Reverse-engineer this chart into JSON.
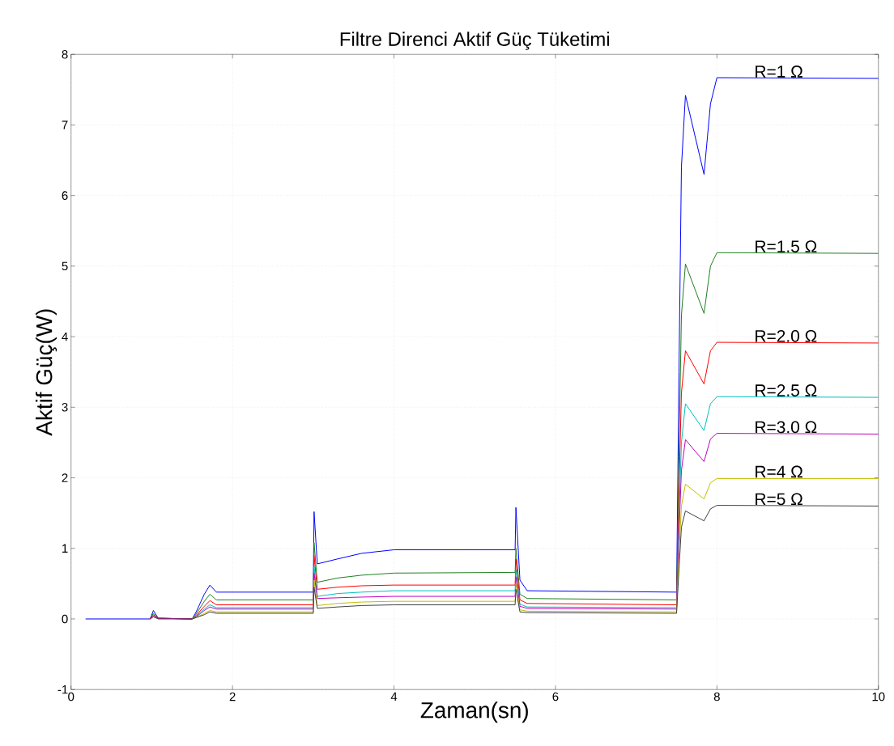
{
  "chart_data": {
    "type": "line",
    "title": "Filtre Direnci Aktif Güç Tüketimi",
    "xlabel": "Zaman(sn)",
    "ylabel": "Aktif Güç(W)",
    "x": [
      0.18,
      0.98,
      1.02,
      1.08,
      1.5,
      1.55,
      1.65,
      1.72,
      1.8,
      3.0,
      3.01,
      3.05,
      3.3,
      3.6,
      4.0,
      5.5,
      5.51,
      5.56,
      5.65,
      7.5,
      7.53,
      7.56,
      7.61,
      7.84,
      7.92,
      8.0,
      10
    ],
    "series": [
      {
        "name": "R=1 Ω",
        "color": "#0000ff",
        "values": [
          0,
          0,
          0.12,
          0.01,
          0,
          0.1,
          0.35,
          0.48,
          0.38,
          0.38,
          1.52,
          0.78,
          0.85,
          0.93,
          0.98,
          0.98,
          1.58,
          0.55,
          0.4,
          0.38,
          3.5,
          6.4,
          7.42,
          6.3,
          7.3,
          7.67,
          7.66
        ]
      },
      {
        "name": "R=1.5 Ω",
        "color": "#1f7f1f",
        "values": [
          null,
          0,
          0.08,
          0.01,
          0,
          0.07,
          0.25,
          0.35,
          0.27,
          0.27,
          1.08,
          0.52,
          0.58,
          0.62,
          0.65,
          0.66,
          1.0,
          0.35,
          0.29,
          0.27,
          2.3,
          4.3,
          5.03,
          4.33,
          5.0,
          5.19,
          5.18
        ]
      },
      {
        "name": "R=2.0 Ω",
        "color": "#ff0000",
        "values": [
          null,
          0,
          0.06,
          0.01,
          0,
          0.05,
          0.18,
          0.26,
          0.2,
          0.2,
          0.9,
          0.42,
          0.45,
          0.47,
          0.48,
          0.48,
          0.85,
          0.27,
          0.22,
          0.2,
          1.8,
          3.2,
          3.8,
          3.33,
          3.8,
          3.92,
          3.91
        ]
      },
      {
        "name": "R=2.5 Ω",
        "color": "#00bfbf",
        "values": [
          null,
          null,
          null,
          null,
          0,
          0.04,
          0.14,
          0.2,
          0.16,
          0.16,
          0.75,
          0.32,
          0.36,
          0.38,
          0.4,
          0.4,
          0.7,
          0.21,
          0.17,
          0.16,
          1.4,
          2.5,
          3.05,
          2.67,
          3.05,
          3.15,
          3.14
        ]
      },
      {
        "name": "R=3.0 Ω",
        "color": "#bf00bf",
        "values": [
          null,
          0,
          0.04,
          0.01,
          0,
          0.03,
          0.12,
          0.17,
          0.14,
          0.14,
          0.65,
          0.29,
          0.3,
          0.31,
          0.32,
          0.32,
          0.6,
          0.18,
          0.15,
          0.14,
          1.2,
          2.1,
          2.54,
          2.23,
          2.55,
          2.63,
          2.62
        ]
      },
      {
        "name": "R=4 Ω",
        "color": "#bfbf00",
        "values": [
          null,
          null,
          null,
          null,
          0,
          0.02,
          0.08,
          0.12,
          0.1,
          0.1,
          0.55,
          0.19,
          0.22,
          0.24,
          0.25,
          0.25,
          0.5,
          0.13,
          0.11,
          0.1,
          0.9,
          1.6,
          1.91,
          1.7,
          1.93,
          1.99,
          1.99
        ]
      },
      {
        "name": "R=5 Ω",
        "color": "#404040",
        "values": [
          null,
          0,
          0.03,
          0,
          0,
          0.02,
          0.06,
          0.1,
          0.08,
          0.08,
          0.45,
          0.15,
          0.17,
          0.19,
          0.2,
          0.2,
          0.42,
          0.1,
          0.09,
          0.08,
          0.7,
          1.3,
          1.53,
          1.39,
          1.56,
          1.61,
          1.6
        ]
      }
    ],
    "xlim": [
      0,
      10
    ],
    "ylim": [
      -1,
      8
    ],
    "xticks": [
      0,
      2,
      4,
      6,
      8,
      10
    ],
    "yticks": [
      -1,
      0,
      1,
      2,
      3,
      4,
      5,
      6,
      7,
      8
    ],
    "grid": true
  }
}
